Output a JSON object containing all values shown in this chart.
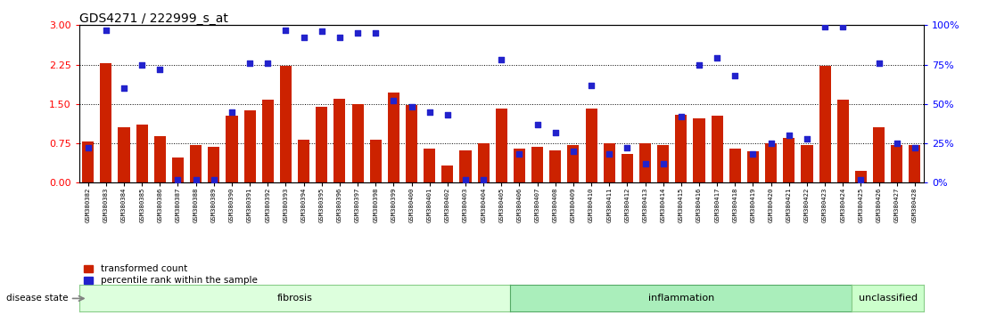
{
  "title": "GDS4271 / 222999_s_at",
  "samples": [
    "GSM380382",
    "GSM380383",
    "GSM380384",
    "GSM380385",
    "GSM380386",
    "GSM380387",
    "GSM380388",
    "GSM380389",
    "GSM380390",
    "GSM380391",
    "GSM380392",
    "GSM380393",
    "GSM380394",
    "GSM380395",
    "GSM380396",
    "GSM380397",
    "GSM380398",
    "GSM380399",
    "GSM380400",
    "GSM380401",
    "GSM380402",
    "GSM380403",
    "GSM380404",
    "GSM380405",
    "GSM380406",
    "GSM380407",
    "GSM380408",
    "GSM380409",
    "GSM380410",
    "GSM380411",
    "GSM380412",
    "GSM380413",
    "GSM380414",
    "GSM380415",
    "GSM380416",
    "GSM380417",
    "GSM380418",
    "GSM380419",
    "GSM380420",
    "GSM380421",
    "GSM380422",
    "GSM380423",
    "GSM380424",
    "GSM380425",
    "GSM380426",
    "GSM380427",
    "GSM380428"
  ],
  "bar_values": [
    0.78,
    2.28,
    1.05,
    1.1,
    0.88,
    0.48,
    0.72,
    0.68,
    1.28,
    1.38,
    1.58,
    2.22,
    0.82,
    1.45,
    1.6,
    1.5,
    0.82,
    1.72,
    1.48,
    0.65,
    0.32,
    0.62,
    0.75,
    1.42,
    0.65,
    0.68,
    0.62,
    0.72,
    1.42,
    0.75,
    0.55,
    0.75,
    0.72,
    1.3,
    1.22,
    1.28,
    0.65,
    0.6,
    0.75,
    0.85,
    0.72,
    2.22,
    1.58,
    0.22,
    1.05,
    0.72,
    0.72
  ],
  "scatter_values_pct": [
    22,
    97,
    60,
    75,
    72,
    2,
    2,
    2,
    45,
    76,
    76,
    97,
    92,
    96,
    92,
    95,
    95,
    52,
    48,
    45,
    43,
    2,
    2,
    78,
    18,
    37,
    32,
    20,
    62,
    18,
    22,
    12,
    12,
    42,
    75,
    79,
    68,
    18,
    25,
    30,
    28,
    99,
    99,
    2,
    76,
    25,
    22
  ],
  "groups": [
    {
      "name": "fibrosis",
      "start": 0,
      "end": 24,
      "color": "#ddffdd",
      "edgecolor": "#88cc88"
    },
    {
      "name": "inflammation",
      "start": 24,
      "end": 43,
      "color": "#aaeebb",
      "edgecolor": "#55aa66"
    },
    {
      "name": "unclassified",
      "start": 43,
      "end": 47,
      "color": "#ccffcc",
      "edgecolor": "#88cc88"
    }
  ],
  "bar_color": "#cc2200",
  "scatter_color": "#2222cc",
  "ylim_left": [
    0,
    3.0
  ],
  "ylim_right": [
    0,
    100
  ],
  "yticks_left": [
    0,
    0.75,
    1.5,
    2.25,
    3.0
  ],
  "yticks_right": [
    0,
    25,
    50,
    75,
    100
  ],
  "hlines": [
    0.75,
    1.5,
    2.25
  ],
  "bar_width": 0.65
}
